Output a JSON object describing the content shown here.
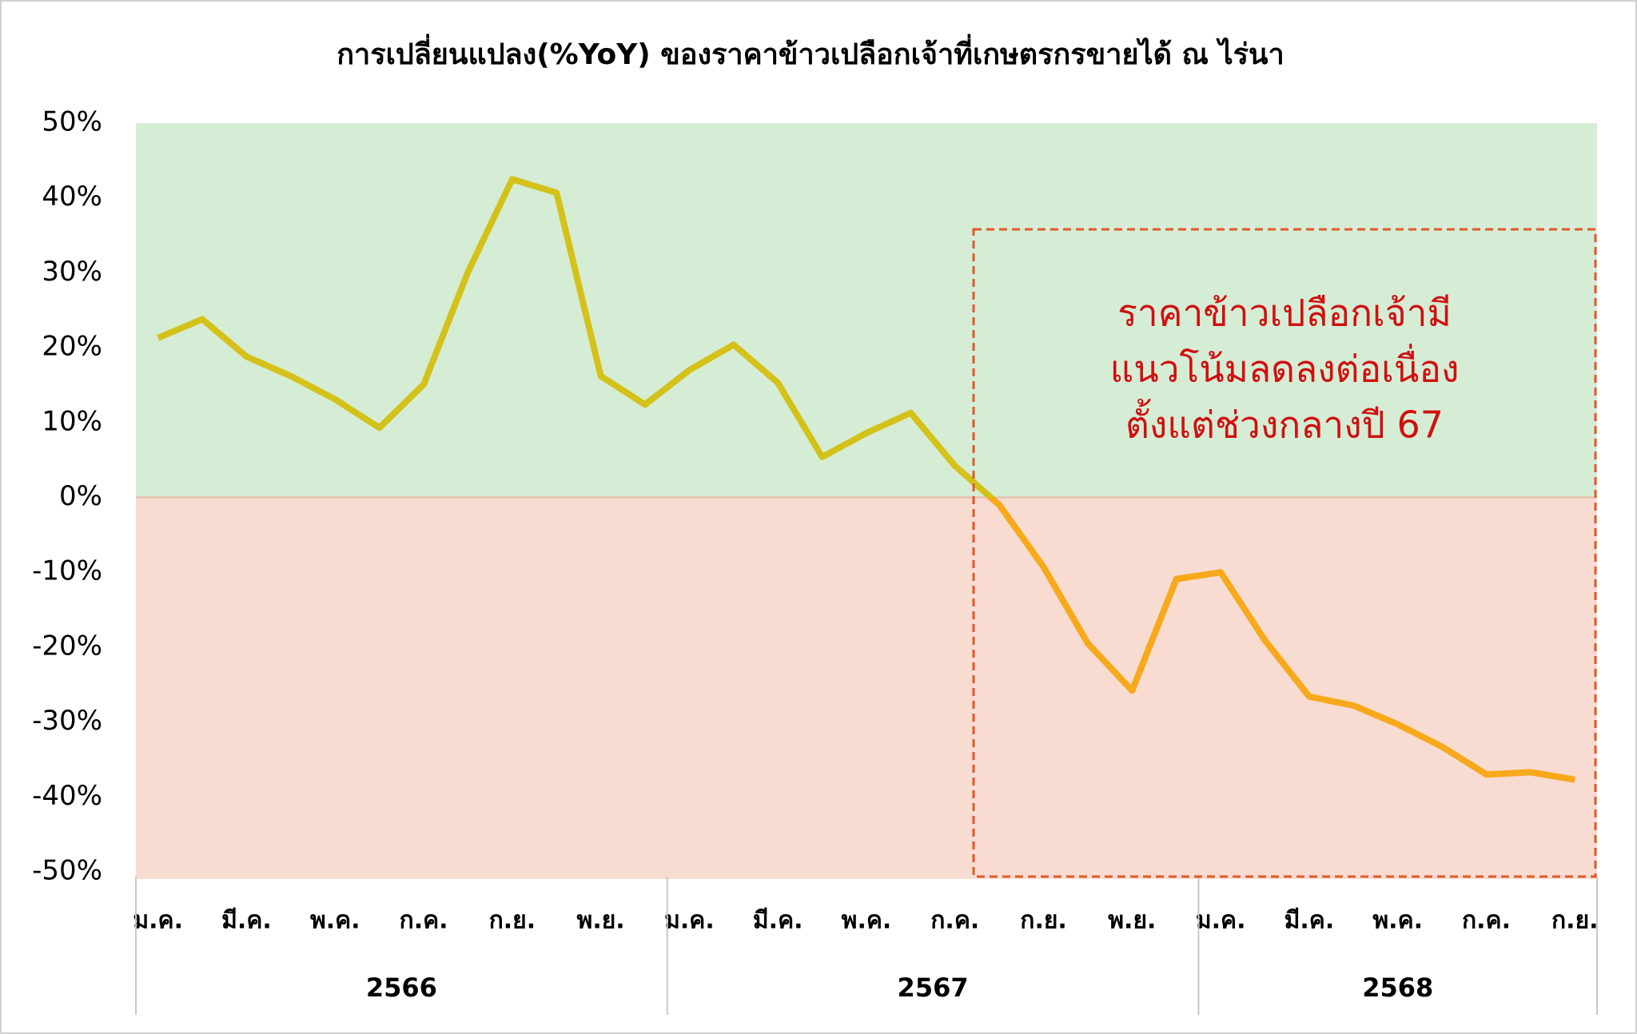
{
  "chart_data": {
    "type": "line",
    "title": "การเปลี่ยนแปลง(%YoY) ของราคาข้าวเปลือกเจ้าที่เกษตรกรขายได้ ณ ไร่นา",
    "categories": [
      "ม.ค.",
      null,
      "มี.ค.",
      null,
      "พ.ค.",
      null,
      "ก.ค.",
      null,
      "ก.ย.",
      null,
      "พ.ย.",
      null,
      "ม.ค.",
      null,
      "มี.ค.",
      null,
      "พ.ค.",
      null,
      "ก.ค.",
      null,
      "ก.ย.",
      null,
      "พ.ย.",
      null,
      "ม.ค.",
      null,
      "มี.ค.",
      null,
      "พ.ค.",
      null,
      "ก.ค.",
      null,
      "ก.ย."
    ],
    "year_groups": [
      {
        "label": "2566",
        "span": 12
      },
      {
        "label": "2567",
        "span": 12
      },
      {
        "label": "2568",
        "span": 9
      }
    ],
    "values": [
      21.3,
      23.8,
      18.8,
      16.2,
      13.1,
      9.3,
      15.1,
      30.1,
      42.5,
      40.7,
      16.2,
      12.4,
      17.0,
      20.4,
      15.3,
      5.4,
      8.6,
      11.3,
      4.2,
      -1.0,
      -9.3,
      -19.5,
      -25.8,
      -10.9,
      -10.0,
      -19.1,
      -26.6,
      -27.8,
      -30.3,
      -33.3,
      -37.0,
      -36.7,
      -37.7
    ],
    "positive_color": "#d4c21a",
    "negative_color": "#f7a91b",
    "positive_band_color": "#d6edd5",
    "negative_band_color": "#f8dcd2",
    "ylim": [
      -50,
      50
    ],
    "yticks": [
      {
        "value": -50,
        "label": "-50%"
      },
      {
        "value": -40,
        "label": "-40%"
      },
      {
        "value": -30,
        "label": "-30%"
      },
      {
        "value": -20,
        "label": "-20%"
      },
      {
        "value": -10,
        "label": "-10%"
      },
      {
        "value": 0,
        "label": "0%"
      },
      {
        "value": 10,
        "label": "10%"
      },
      {
        "value": 20,
        "label": "20%"
      },
      {
        "value": 30,
        "label": "30%"
      },
      {
        "value": 40,
        "label": "40%"
      },
      {
        "value": 50,
        "label": "50%"
      }
    ],
    "annotation": {
      "lines": [
        "ราคาข้าวเปลือกเจ้ามี",
        "แนวโน้มลดลงต่อเนื่อง",
        "ตั้งแต่ช่วงกลางปี 67"
      ],
      "color": "#d01010"
    }
  }
}
